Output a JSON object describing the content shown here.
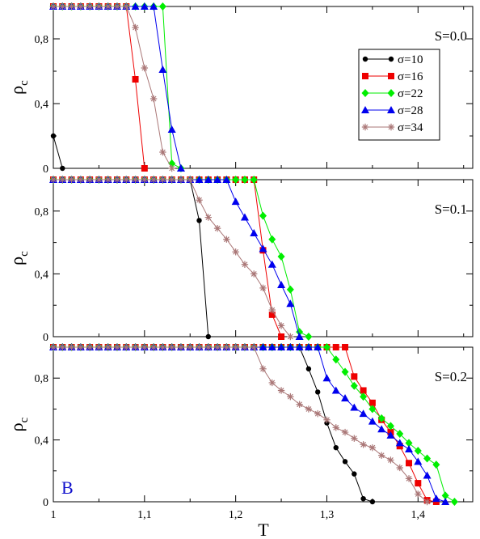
{
  "chart_data": {
    "type": "line",
    "xlabel": "T",
    "ylabel": "ρc",
    "xlim": [
      1.0,
      1.46
    ],
    "ylim": [
      0,
      1.0
    ],
    "xticks": [
      "1",
      "1,1",
      "1,2",
      "1,3",
      "1,4"
    ],
    "yticks": [
      "0",
      "0,4",
      "0,8"
    ],
    "corner_label": "B",
    "corner_label_color": "#1010cc",
    "legend_position": "top-right of first panel",
    "styles": [
      {
        "name": "σ=10",
        "color": "#000000",
        "marker": "circle"
      },
      {
        "name": "σ=16",
        "color": "#ee0000",
        "marker": "square"
      },
      {
        "name": "σ=22",
        "color": "#00ee00",
        "marker": "diamond"
      },
      {
        "name": "σ=28",
        "color": "#0000ee",
        "marker": "triangle"
      },
      {
        "name": "σ=34",
        "color": "#aa7777",
        "marker": "star"
      }
    ],
    "panels": [
      {
        "label": "S=0.0",
        "series": [
          {
            "name": "σ=10",
            "x": [
              1.0,
              1.01
            ],
            "y": [
              0.2,
              0.0
            ]
          },
          {
            "name": "σ=16",
            "x": [
              1.0,
              1.01,
              1.02,
              1.03,
              1.04,
              1.05,
              1.06,
              1.07,
              1.08,
              1.09,
              1.1
            ],
            "y": [
              1,
              1,
              1,
              1,
              1,
              1,
              1,
              1,
              1,
              0.55,
              0.0
            ]
          },
          {
            "name": "σ=22",
            "x": [
              1.0,
              1.01,
              1.02,
              1.03,
              1.04,
              1.05,
              1.06,
              1.07,
              1.08,
              1.09,
              1.1,
              1.11,
              1.12,
              1.13,
              1.14
            ],
            "y": [
              1,
              1,
              1,
              1,
              1,
              1,
              1,
              1,
              1,
              1,
              1,
              1,
              1,
              0.03,
              0.0
            ]
          },
          {
            "name": "σ=28",
            "x": [
              1.0,
              1.01,
              1.02,
              1.03,
              1.04,
              1.05,
              1.06,
              1.07,
              1.08,
              1.09,
              1.1,
              1.11,
              1.12,
              1.13,
              1.14
            ],
            "y": [
              1,
              1,
              1,
              1,
              1,
              1,
              1,
              1,
              1,
              1,
              1,
              1,
              0.61,
              0.24,
              0.0
            ]
          },
          {
            "name": "σ=34",
            "x": [
              1.0,
              1.01,
              1.02,
              1.03,
              1.04,
              1.05,
              1.06,
              1.07,
              1.08,
              1.09,
              1.1,
              1.11,
              1.12,
              1.13
            ],
            "y": [
              1,
              1,
              1,
              1,
              1,
              1,
              1,
              1,
              1,
              0.87,
              0.62,
              0.43,
              0.1,
              0.0
            ]
          }
        ]
      },
      {
        "label": "S=0.1",
        "series": [
          {
            "name": "σ=10",
            "x": [
              1.0,
              1.01,
              1.02,
              1.03,
              1.04,
              1.05,
              1.06,
              1.07,
              1.08,
              1.09,
              1.1,
              1.11,
              1.12,
              1.13,
              1.14,
              1.15,
              1.16,
              1.17
            ],
            "y": [
              1,
              1,
              1,
              1,
              1,
              1,
              1,
              1,
              1,
              1,
              1,
              1,
              1,
              1,
              1,
              1,
              0.74,
              0.0
            ]
          },
          {
            "name": "σ=16",
            "x": [
              1.0,
              1.01,
              1.02,
              1.03,
              1.04,
              1.05,
              1.06,
              1.07,
              1.08,
              1.09,
              1.1,
              1.11,
              1.12,
              1.13,
              1.14,
              1.15,
              1.16,
              1.17,
              1.18,
              1.19,
              1.2,
              1.21,
              1.22,
              1.23,
              1.24,
              1.25
            ],
            "y": [
              1,
              1,
              1,
              1,
              1,
              1,
              1,
              1,
              1,
              1,
              1,
              1,
              1,
              1,
              1,
              1,
              1,
              1,
              1,
              1,
              1,
              1,
              1,
              0.55,
              0.14,
              0.0
            ]
          },
          {
            "name": "σ=22",
            "x": [
              1.0,
              1.01,
              1.02,
              1.03,
              1.04,
              1.05,
              1.06,
              1.07,
              1.08,
              1.09,
              1.1,
              1.11,
              1.12,
              1.13,
              1.14,
              1.15,
              1.16,
              1.17,
              1.18,
              1.19,
              1.2,
              1.21,
              1.22,
              1.23,
              1.24,
              1.25,
              1.26,
              1.27,
              1.28
            ],
            "y": [
              1,
              1,
              1,
              1,
              1,
              1,
              1,
              1,
              1,
              1,
              1,
              1,
              1,
              1,
              1,
              1,
              1,
              1,
              1,
              1,
              1,
              1,
              1,
              0.77,
              0.62,
              0.51,
              0.3,
              0.03,
              0.0
            ]
          },
          {
            "name": "σ=28",
            "x": [
              1.0,
              1.01,
              1.02,
              1.03,
              1.04,
              1.05,
              1.06,
              1.07,
              1.08,
              1.09,
              1.1,
              1.11,
              1.12,
              1.13,
              1.14,
              1.15,
              1.16,
              1.17,
              1.18,
              1.19,
              1.2,
              1.21,
              1.22,
              1.23,
              1.24,
              1.25,
              1.26,
              1.27
            ],
            "y": [
              1,
              1,
              1,
              1,
              1,
              1,
              1,
              1,
              1,
              1,
              1,
              1,
              1,
              1,
              1,
              1,
              1,
              1,
              1,
              1,
              0.86,
              0.76,
              0.66,
              0.56,
              0.46,
              0.33,
              0.21,
              0.0
            ]
          },
          {
            "name": "σ=34",
            "x": [
              1.0,
              1.01,
              1.02,
              1.03,
              1.04,
              1.05,
              1.06,
              1.07,
              1.08,
              1.09,
              1.1,
              1.11,
              1.12,
              1.13,
              1.14,
              1.15,
              1.16,
              1.17,
              1.18,
              1.19,
              1.2,
              1.21,
              1.22,
              1.23,
              1.24,
              1.25,
              1.26
            ],
            "y": [
              1,
              1,
              1,
              1,
              1,
              1,
              1,
              1,
              1,
              1,
              1,
              1,
              1,
              1,
              1,
              1,
              0.87,
              0.76,
              0.69,
              0.62,
              0.54,
              0.46,
              0.4,
              0.31,
              0.17,
              0.07,
              0.0
            ]
          }
        ]
      },
      {
        "label": "S=0.2",
        "series": [
          {
            "name": "σ=10",
            "x": [
              1.0,
              1.01,
              1.02,
              1.03,
              1.04,
              1.05,
              1.06,
              1.07,
              1.08,
              1.09,
              1.1,
              1.11,
              1.12,
              1.13,
              1.14,
              1.15,
              1.16,
              1.17,
              1.18,
              1.19,
              1.2,
              1.21,
              1.22,
              1.23,
              1.24,
              1.25,
              1.26,
              1.27,
              1.28,
              1.29,
              1.3,
              1.31,
              1.32,
              1.33,
              1.34,
              1.35
            ],
            "y": [
              1,
              1,
              1,
              1,
              1,
              1,
              1,
              1,
              1,
              1,
              1,
              1,
              1,
              1,
              1,
              1,
              1,
              1,
              1,
              1,
              1,
              1,
              1,
              1,
              1,
              1,
              1,
              1,
              0.86,
              0.71,
              0.51,
              0.35,
              0.26,
              0.18,
              0.02,
              0.0
            ]
          },
          {
            "name": "σ=16",
            "x": [
              1.0,
              1.01,
              1.02,
              1.03,
              1.04,
              1.05,
              1.06,
              1.07,
              1.08,
              1.09,
              1.1,
              1.11,
              1.12,
              1.13,
              1.14,
              1.15,
              1.16,
              1.17,
              1.18,
              1.19,
              1.2,
              1.21,
              1.22,
              1.23,
              1.24,
              1.25,
              1.26,
              1.27,
              1.28,
              1.29,
              1.3,
              1.31,
              1.32,
              1.33,
              1.34,
              1.35,
              1.36,
              1.37,
              1.38,
              1.39,
              1.4,
              1.41,
              1.42
            ],
            "y": [
              1,
              1,
              1,
              1,
              1,
              1,
              1,
              1,
              1,
              1,
              1,
              1,
              1,
              1,
              1,
              1,
              1,
              1,
              1,
              1,
              1,
              1,
              1,
              1,
              1,
              1,
              1,
              1,
              1,
              1,
              1,
              1,
              1,
              0.81,
              0.72,
              0.64,
              0.53,
              0.45,
              0.36,
              0.25,
              0.12,
              0.01,
              0.0
            ]
          },
          {
            "name": "σ=22",
            "x": [
              1.0,
              1.01,
              1.02,
              1.03,
              1.04,
              1.05,
              1.06,
              1.07,
              1.08,
              1.09,
              1.1,
              1.11,
              1.12,
              1.13,
              1.14,
              1.15,
              1.16,
              1.17,
              1.18,
              1.19,
              1.2,
              1.21,
              1.22,
              1.23,
              1.24,
              1.25,
              1.26,
              1.27,
              1.28,
              1.29,
              1.3,
              1.31,
              1.32,
              1.33,
              1.34,
              1.35,
              1.36,
              1.37,
              1.38,
              1.39,
              1.4,
              1.41,
              1.42,
              1.43,
              1.44
            ],
            "y": [
              1,
              1,
              1,
              1,
              1,
              1,
              1,
              1,
              1,
              1,
              1,
              1,
              1,
              1,
              1,
              1,
              1,
              1,
              1,
              1,
              1,
              1,
              1,
              1,
              1,
              1,
              1,
              1,
              1,
              1,
              1,
              0.92,
              0.84,
              0.75,
              0.68,
              0.6,
              0.54,
              0.49,
              0.44,
              0.38,
              0.33,
              0.28,
              0.24,
              0.04,
              0.0
            ]
          },
          {
            "name": "σ=28",
            "x": [
              1.0,
              1.01,
              1.02,
              1.03,
              1.04,
              1.05,
              1.06,
              1.07,
              1.08,
              1.09,
              1.1,
              1.11,
              1.12,
              1.13,
              1.14,
              1.15,
              1.16,
              1.17,
              1.18,
              1.19,
              1.2,
              1.21,
              1.22,
              1.23,
              1.24,
              1.25,
              1.26,
              1.27,
              1.28,
              1.29,
              1.3,
              1.31,
              1.32,
              1.33,
              1.34,
              1.35,
              1.36,
              1.37,
              1.38,
              1.39,
              1.4,
              1.41,
              1.42,
              1.43
            ],
            "y": [
              1,
              1,
              1,
              1,
              1,
              1,
              1,
              1,
              1,
              1,
              1,
              1,
              1,
              1,
              1,
              1,
              1,
              1,
              1,
              1,
              1,
              1,
              1,
              1,
              1,
              1,
              1,
              1,
              1,
              1,
              0.8,
              0.72,
              0.67,
              0.61,
              0.57,
              0.52,
              0.47,
              0.43,
              0.38,
              0.34,
              0.26,
              0.17,
              0.02,
              0.0
            ]
          },
          {
            "name": "σ=34",
            "x": [
              1.0,
              1.01,
              1.02,
              1.03,
              1.04,
              1.05,
              1.06,
              1.07,
              1.08,
              1.09,
              1.1,
              1.11,
              1.12,
              1.13,
              1.14,
              1.15,
              1.16,
              1.17,
              1.18,
              1.19,
              1.2,
              1.21,
              1.22,
              1.23,
              1.24,
              1.25,
              1.26,
              1.27,
              1.28,
              1.29,
              1.3,
              1.31,
              1.32,
              1.33,
              1.34,
              1.35,
              1.36,
              1.37,
              1.38,
              1.39,
              1.4,
              1.41
            ],
            "y": [
              1,
              1,
              1,
              1,
              1,
              1,
              1,
              1,
              1,
              1,
              1,
              1,
              1,
              1,
              1,
              1,
              1,
              1,
              1,
              1,
              1,
              1,
              1,
              0.86,
              0.77,
              0.72,
              0.68,
              0.63,
              0.6,
              0.57,
              0.53,
              0.48,
              0.45,
              0.41,
              0.37,
              0.35,
              0.3,
              0.27,
              0.22,
              0.15,
              0.05,
              0.0
            ]
          }
        ]
      }
    ]
  }
}
